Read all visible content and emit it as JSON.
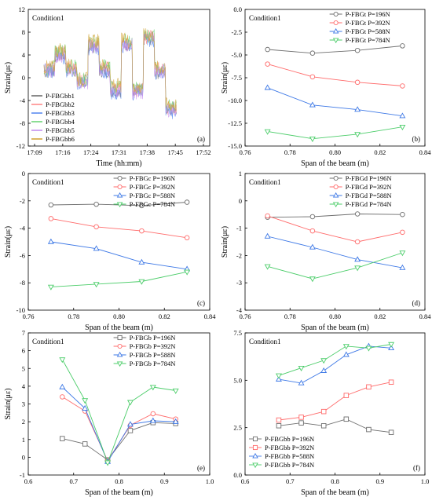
{
  "chart_data": [
    {
      "panel": "(a)",
      "type": "line",
      "condition": "Condition1",
      "xlabel": "Time (hh:mm)",
      "ylabel": "Strain(με)",
      "ylim": [
        -12,
        12
      ],
      "yticks": [
        -12,
        -8,
        -4,
        0,
        4,
        8,
        12
      ],
      "xticks": [
        "17:09",
        "17:16",
        "17:24",
        "17:31",
        "17:38",
        "17:45",
        "17:52"
      ],
      "legend_position": "bottom-left",
      "series": [
        {
          "name": "P-FBGbb1",
          "color": "#6e6e6e",
          "levels": [
            1.1,
            4.0,
            1.4,
            -0.7,
            5.6,
            1.3,
            -2.2,
            5.9,
            -2.3,
            6.9,
            1.0,
            -5.2
          ]
        },
        {
          "name": "P-FBGbb2",
          "color": "#ff8c8c",
          "levels": [
            1.6,
            4.3,
            1.7,
            -0.5,
            6.0,
            1.7,
            -1.9,
            6.2,
            -2.2,
            7.2,
            1.4,
            -5.5
          ]
        },
        {
          "name": "P-FBGbb3",
          "color": "#5b8cf0",
          "levels": [
            1.2,
            3.6,
            1.2,
            -0.9,
            5.2,
            1.1,
            -2.6,
            5.4,
            -2.7,
            6.5,
            0.8,
            -6.0
          ]
        },
        {
          "name": "P-FBGbb4",
          "color": "#6fd67a",
          "levels": [
            1.7,
            4.6,
            1.9,
            -0.4,
            6.3,
            2.0,
            -1.6,
            6.5,
            -1.8,
            7.4,
            1.6,
            -4.9
          ]
        },
        {
          "name": "P-FBGbb5",
          "color": "#c58ff0",
          "levels": [
            1.3,
            3.9,
            1.3,
            -0.8,
            5.5,
            1.2,
            -2.4,
            5.7,
            -2.5,
            6.8,
            1.1,
            -5.7
          ]
        },
        {
          "name": "P-FBGbb6",
          "color": "#d4a73c",
          "levels": [
            1.9,
            4.8,
            2.1,
            -0.2,
            6.4,
            2.2,
            -1.4,
            6.6,
            -1.6,
            7.5,
            1.8,
            -4.7
          ]
        }
      ]
    },
    {
      "panel": "(b)",
      "type": "line",
      "condition": "Condition1",
      "xlabel": "Span of the beam (m)",
      "ylabel": "Strain(με)",
      "xlim": [
        0.76,
        0.84
      ],
      "ylim": [
        -15,
        0
      ],
      "xticks": [
        0.76,
        0.78,
        0.8,
        0.82,
        0.84
      ],
      "yticks": [
        -15,
        -12.5,
        -10,
        -7.5,
        -5,
        -2.5,
        0
      ],
      "x": [
        0.77,
        0.79,
        0.81,
        0.83
      ],
      "legend_position": "top-right",
      "series": [
        {
          "name": "P-FBGt  P=196N",
          "color": "#6e6e6e",
          "marker": "circle",
          "values": [
            -4.4,
            -4.8,
            -4.5,
            -4.0
          ]
        },
        {
          "name": "P-FBGt  P=392N",
          "color": "#ff6b6b",
          "marker": "circle",
          "values": [
            -6.0,
            -7.4,
            -8.0,
            -8.4
          ]
        },
        {
          "name": "P-FBGt  P=588N",
          "color": "#3d78e6",
          "marker": "triangle-up",
          "values": [
            -8.6,
            -10.5,
            -11.0,
            -11.7
          ]
        },
        {
          "name": "P-FBGt  P=784N",
          "color": "#4ccd6a",
          "marker": "triangle-down",
          "values": [
            -13.4,
            -14.2,
            -13.7,
            -12.9
          ]
        }
      ]
    },
    {
      "panel": "(c)",
      "type": "line",
      "condition": "Condition1",
      "xlabel": "Span of the beam (m)",
      "ylabel": "Strain(με)",
      "xlim": [
        0.76,
        0.84
      ],
      "ylim": [
        -10,
        0
      ],
      "xticks": [
        0.76,
        0.78,
        0.8,
        0.82,
        0.84
      ],
      "yticks": [
        -10,
        -8,
        -6,
        -4,
        -2,
        0
      ],
      "x": [
        0.77,
        0.79,
        0.81,
        0.83
      ],
      "legend_position": "top-right",
      "series": [
        {
          "name": "P-FBGc  P=196N",
          "color": "#6e6e6e",
          "marker": "circle",
          "values": [
            -2.3,
            -2.25,
            -2.35,
            -2.1
          ]
        },
        {
          "name": "P-FBGc  P=392N",
          "color": "#ff6b6b",
          "marker": "circle",
          "values": [
            -3.3,
            -3.9,
            -4.2,
            -4.7
          ]
        },
        {
          "name": "P-FBGc  P=588N",
          "color": "#3d78e6",
          "marker": "triangle-up",
          "values": [
            -5.0,
            -5.5,
            -6.5,
            -7.0
          ]
        },
        {
          "name": "P-FBGc  P=784N",
          "color": "#4ccd6a",
          "marker": "triangle-down",
          "values": [
            -8.3,
            -8.1,
            -7.9,
            -7.2
          ]
        }
      ]
    },
    {
      "panel": "(d)",
      "type": "line",
      "condition": "Condition1",
      "xlabel": "Span of the beam (m)",
      "ylabel": "Strain(με)",
      "xlim": [
        0.76,
        0.84
      ],
      "ylim": [
        -4,
        1
      ],
      "xticks": [
        0.76,
        0.78,
        0.8,
        0.82,
        0.84
      ],
      "yticks": [
        -4,
        -3,
        -2,
        -1,
        0,
        1
      ],
      "x": [
        0.77,
        0.79,
        0.81,
        0.83
      ],
      "legend_position": "top-right",
      "series": [
        {
          "name": "P-FBGd  P=196N",
          "color": "#6e6e6e",
          "marker": "circle",
          "values": [
            -0.6,
            -0.58,
            -0.48,
            -0.5
          ]
        },
        {
          "name": "P-FBGd  P=392N",
          "color": "#ff6b6b",
          "marker": "circle",
          "values": [
            -0.55,
            -1.1,
            -1.5,
            -1.15
          ]
        },
        {
          "name": "P-FBGd  P=588N",
          "color": "#3d78e6",
          "marker": "triangle-up",
          "values": [
            -1.3,
            -1.7,
            -2.15,
            -2.45
          ]
        },
        {
          "name": "P-FBGd  P=784N",
          "color": "#4ccd6a",
          "marker": "triangle-down",
          "values": [
            -2.4,
            -2.85,
            -2.45,
            -1.9
          ]
        }
      ]
    },
    {
      "panel": "(e)",
      "type": "line",
      "condition": "Condition1",
      "xlabel": "Span of the beam (m)",
      "ylabel": "Strain(με)",
      "xlim": [
        0.6,
        1.0
      ],
      "ylim": [
        -1,
        7
      ],
      "xticks": [
        0.6,
        0.7,
        0.8,
        0.9,
        1.0
      ],
      "yticks": [
        -1,
        0,
        1,
        2,
        3,
        4,
        5,
        6,
        7
      ],
      "x": [
        0.675,
        0.725,
        0.775,
        0.825,
        0.875,
        0.925
      ],
      "legend_position": "top-right",
      "series": [
        {
          "name": "P-FBGb  P=196N",
          "color": "#6e6e6e",
          "marker": "square",
          "values": [
            1.05,
            0.75,
            -0.15,
            1.5,
            1.95,
            1.9
          ]
        },
        {
          "name": "P-FBGb  P=392N",
          "color": "#ff6b6b",
          "marker": "circle",
          "values": [
            3.4,
            2.6,
            -0.2,
            1.8,
            2.45,
            2.15
          ]
        },
        {
          "name": "P-FBGb  P=588N",
          "color": "#3d78e6",
          "marker": "triangle-up",
          "values": [
            3.95,
            2.75,
            -0.25,
            1.85,
            2.05,
            2.0
          ]
        },
        {
          "name": "P-FBGb  P=784N",
          "color": "#4ccd6a",
          "marker": "triangle-down",
          "values": [
            5.5,
            3.2,
            -0.3,
            3.1,
            3.95,
            3.75
          ]
        }
      ]
    },
    {
      "panel": "(f)",
      "type": "line",
      "condition": "Condition1",
      "xlabel": "Span of the beam (m)",
      "ylabel": "",
      "xlim": [
        0.6,
        1.0
      ],
      "ylim": [
        0,
        7.5
      ],
      "xticks": [
        0.6,
        0.7,
        0.8,
        0.9,
        1.0
      ],
      "yticks": [
        0.0,
        2.5,
        5.0,
        7.5
      ],
      "x": [
        0.675,
        0.725,
        0.775,
        0.825,
        0.875,
        0.925
      ],
      "legend_position": "bottom-left",
      "series": [
        {
          "name": "P-FBGbb  P=196N",
          "color": "#6e6e6e",
          "marker": "square",
          "values": [
            2.6,
            2.75,
            2.6,
            2.95,
            2.4,
            2.25
          ]
        },
        {
          "name": "P-FBGbb  P=392N",
          "color": "#ff6b6b",
          "marker": "square",
          "values": [
            2.9,
            3.05,
            3.35,
            4.2,
            4.65,
            4.9
          ]
        },
        {
          "name": "P-FBGbb  P=588N",
          "color": "#3d78e6",
          "marker": "triangle-up",
          "values": [
            5.05,
            4.85,
            5.5,
            6.35,
            6.8,
            6.7
          ]
        },
        {
          "name": "P-FBGbb  P=784N",
          "color": "#4ccd6a",
          "marker": "triangle-down",
          "values": [
            5.25,
            5.65,
            6.05,
            6.8,
            6.7,
            6.9
          ]
        }
      ]
    }
  ]
}
